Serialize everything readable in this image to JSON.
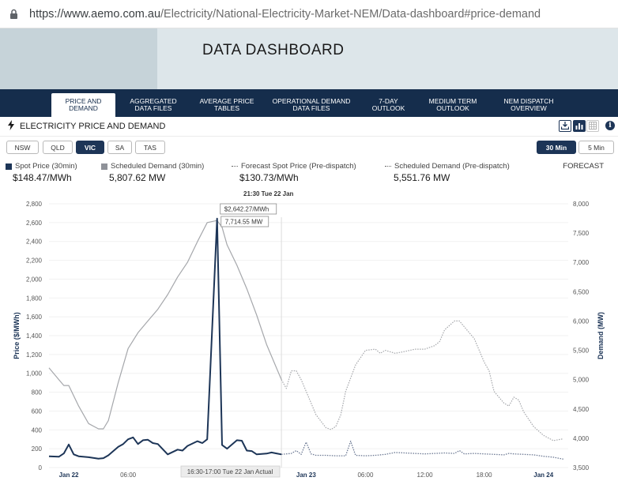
{
  "browser": {
    "url_host": "https://www.aemo.com.au",
    "url_path": "/Electricity/National-Electricity-Market-NEM/Data-dashboard#price-demand"
  },
  "header": {
    "title": "DATA DASHBOARD"
  },
  "nav": [
    {
      "l1": "PRICE AND",
      "l2": "DEMAND",
      "active": true
    },
    {
      "l1": "AGGREGATED",
      "l2": "DATA FILES"
    },
    {
      "l1": "AVERAGE PRICE",
      "l2": "TABLES"
    },
    {
      "l1": "OPERATIONAL DEMAND",
      "l2": "DATA FILES"
    },
    {
      "l1": "7-DAY",
      "l2": "OUTLOOK"
    },
    {
      "l1": "MEDIUM TERM",
      "l2": "OUTLOOK"
    },
    {
      "l1": "NEM DISPATCH",
      "l2": "OVERVIEW"
    }
  ],
  "section": {
    "title": "ELECTRICITY PRICE AND DEMAND"
  },
  "regions": [
    "NSW",
    "QLD",
    "VIC",
    "SA",
    "TAS"
  ],
  "selected_region": "VIC",
  "intervals": [
    "30 Min",
    "5 Min"
  ],
  "selected_interval": "30 Min",
  "legend": [
    {
      "name": "Spot Price (30min)",
      "value": "$148.47/MWh",
      "color": "#1d3557"
    },
    {
      "name": "Scheduled Demand (30min)",
      "value": "5,807.62 MW",
      "color": "#8f9299"
    },
    {
      "name": "Forecast Spot Price (Pre-dispatch)",
      "value": "$130.73/MWh"
    },
    {
      "name": "Scheduled Demand (Pre-dispatch)",
      "value": "5,551.76 MW"
    }
  ],
  "forecast_label": "FORECAST",
  "tooltip": {
    "time": "21:30 Tue 22 Jan",
    "price": "$2,642.27/MWh",
    "demand": "7,714.55 MW"
  },
  "cursor_label": "16:30-17:00 Tue 22 Jan Actual",
  "colors": {
    "navy": "#152d4c",
    "spot": "#1d3557",
    "demand": "#a5a7ab"
  },
  "chart_data": {
    "type": "line",
    "ylabel": "Price ($/MWh)",
    "y2label": "Demand (MW)",
    "ylim": [
      0,
      2800
    ],
    "y2lim": [
      3500,
      8000
    ],
    "y_ticks": [
      "0",
      "200",
      "400",
      "600",
      "800",
      "1,000",
      "1,200",
      "1,400",
      "1,600",
      "1,800",
      "2,000",
      "2,200",
      "2,400",
      "2,600",
      "2,800"
    ],
    "y2_ticks": [
      "3,500",
      "4,000",
      "4,500",
      "5,000",
      "5,500",
      "6,000",
      "6,500",
      "7,000",
      "7,500",
      "8,000"
    ],
    "x_ticks": [
      "Jan 22",
      "06:00",
      "Jan 23",
      "06:00",
      "12:00",
      "18:00",
      "Jan 24"
    ],
    "x_tick_hours": [
      1,
      7,
      25,
      31,
      37,
      43,
      49
    ],
    "xlim_hours": [
      -1,
      51.5
    ],
    "actual_end_hour": 22.5,
    "series": [
      {
        "name": "Spot Price (30min)",
        "axis": "left",
        "style": "solid",
        "x": [
          -1,
          0,
          0.5,
          1,
          1.5,
          2,
          3,
          4,
          4.5,
          5,
          6,
          6.5,
          7,
          7.5,
          8,
          8.5,
          9,
          9.5,
          10,
          11,
          12,
          12.5,
          13,
          14,
          14.5,
          15,
          16,
          16.5,
          17,
          18,
          18.5,
          19,
          19.5,
          20,
          20.5,
          21,
          21.5,
          22,
          22.5
        ],
        "values": [
          120,
          115,
          150,
          245,
          140,
          120,
          110,
          95,
          100,
          130,
          220,
          250,
          300,
          320,
          250,
          290,
          295,
          260,
          250,
          140,
          190,
          180,
          230,
          280,
          260,
          300,
          2642,
          240,
          200,
          290,
          285,
          180,
          175,
          140,
          145,
          148,
          160,
          150,
          140
        ]
      },
      {
        "name": "Scheduled Demand (30min)",
        "axis": "right",
        "style": "solid",
        "x": [
          -1,
          0,
          0.5,
          1,
          2,
          3,
          4,
          4.5,
          5,
          6,
          7,
          8,
          9,
          10,
          11,
          12,
          13,
          14,
          15,
          16,
          16.5,
          17,
          18,
          19,
          20,
          21,
          22.5
        ],
        "values": [
          5200,
          5000,
          4900,
          4900,
          4550,
          4250,
          4160,
          4160,
          4300,
          4950,
          5530,
          5800,
          6000,
          6200,
          6450,
          6750,
          7000,
          7350,
          7680,
          7714,
          7600,
          7300,
          6950,
          6550,
          6100,
          5600,
          5000
        ]
      },
      {
        "name": "Forecast Spot Price (Pre-dispatch)",
        "axis": "left",
        "style": "dotted",
        "x": [
          22.5,
          23,
          23.5,
          24,
          24.5,
          25,
          25.5,
          26,
          27,
          28,
          29,
          29.5,
          30,
          31,
          32,
          33,
          34,
          35,
          36,
          37,
          38,
          39,
          40,
          40.5,
          41,
          42,
          43,
          44,
          45,
          45.5,
          46,
          47,
          48,
          49,
          49.5,
          50,
          51
        ],
        "values": [
          140,
          145,
          150,
          180,
          140,
          270,
          145,
          130,
          130,
          125,
          125,
          280,
          130,
          125,
          130,
          140,
          160,
          155,
          150,
          145,
          150,
          155,
          150,
          180,
          145,
          150,
          145,
          140,
          135,
          150,
          145,
          140,
          135,
          120,
          115,
          110,
          90
        ]
      },
      {
        "name": "Scheduled Demand (Pre-dispatch)",
        "axis": "right",
        "style": "dotted",
        "x": [
          22.5,
          23,
          23.5,
          24,
          24.5,
          25,
          26,
          27,
          27.5,
          28,
          28.5,
          29,
          30,
          31,
          32,
          32.5,
          33,
          34,
          35,
          36,
          37,
          38,
          38.5,
          39,
          40,
          40.5,
          41,
          42,
          42.5,
          43,
          43.5,
          44,
          45,
          45.5,
          46,
          46.5,
          47,
          48,
          49,
          50,
          51
        ],
        "values": [
          5000,
          4850,
          5150,
          5150,
          5000,
          4800,
          4400,
          4180,
          4150,
          4200,
          4400,
          4800,
          5250,
          5500,
          5520,
          5450,
          5500,
          5450,
          5480,
          5520,
          5520,
          5580,
          5650,
          5850,
          6000,
          6000,
          5900,
          5700,
          5500,
          5300,
          5150,
          4800,
          4600,
          4550,
          4700,
          4650,
          4450,
          4200,
          4050,
          3960,
          3990
        ]
      }
    ]
  }
}
